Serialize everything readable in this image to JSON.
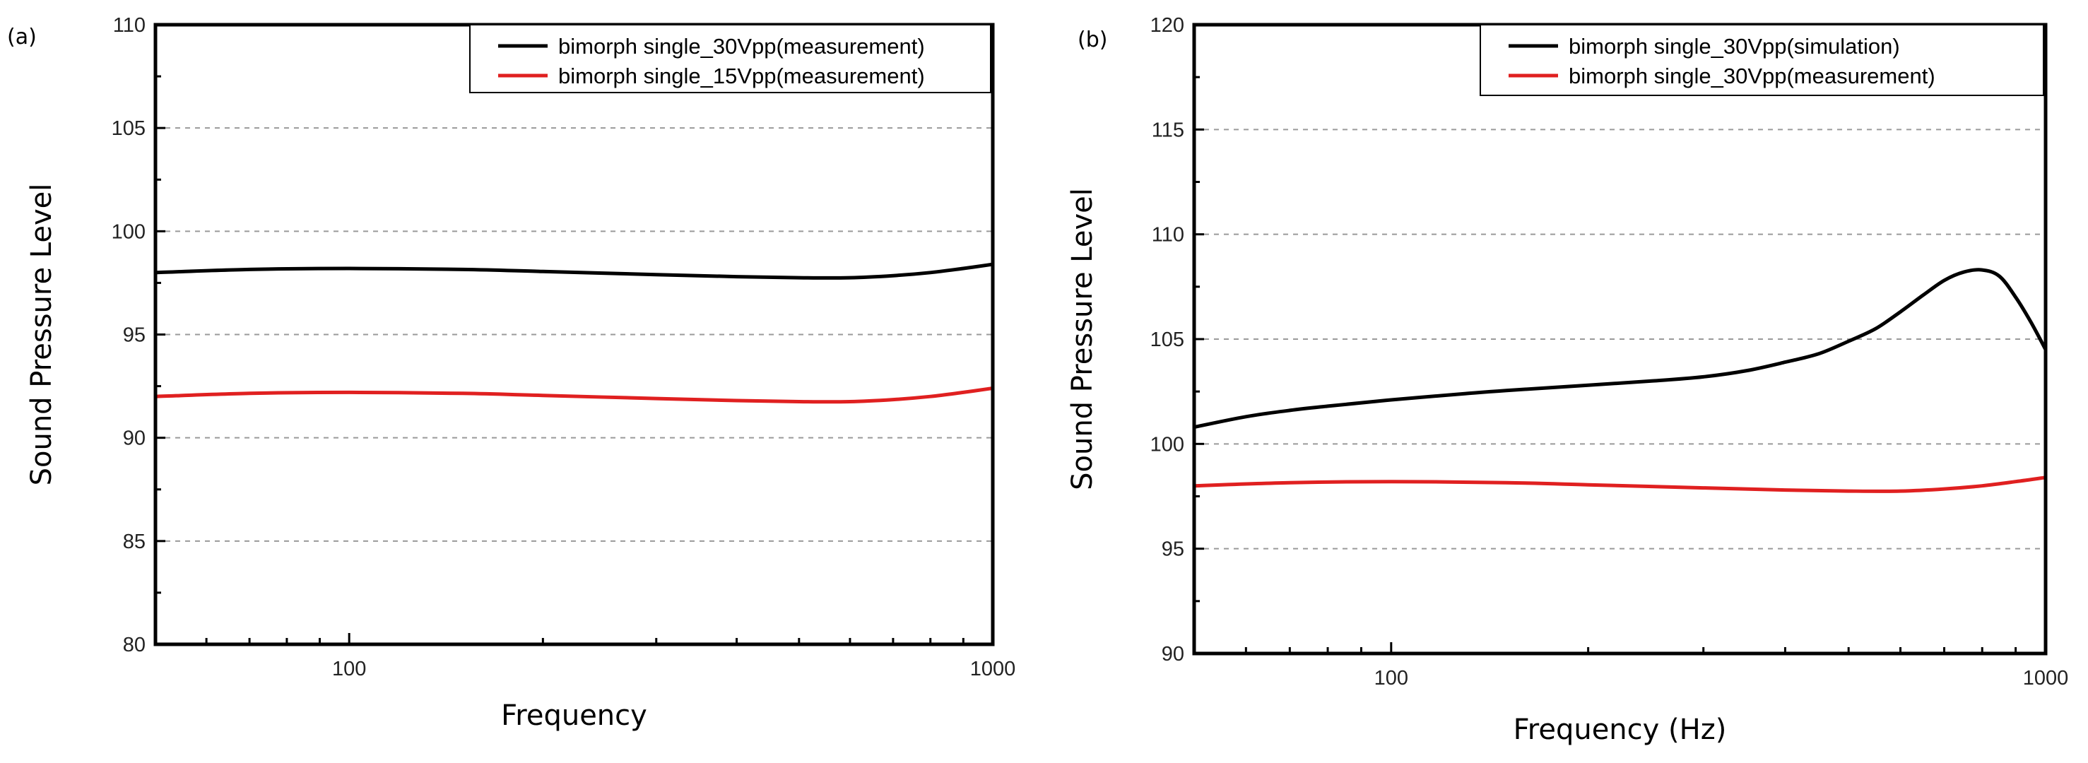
{
  "chart_data": [
    {
      "panel": "(a)",
      "type": "line",
      "xscale": "log",
      "xlim": [
        50,
        1000
      ],
      "ylim": [
        80,
        110
      ],
      "xticks": [
        100,
        1000
      ],
      "xtick_labels": [
        "100",
        "1000"
      ],
      "yticks": [
        80,
        85,
        90,
        95,
        100,
        105,
        110
      ],
      "ytick_labels": [
        "80",
        "85",
        "90",
        "95",
        "100",
        "105",
        "110"
      ],
      "xlabel": "Frequency",
      "ylabel": "Sound Pressure Level",
      "grid": "horizontal dashed",
      "legend_position": "top-right",
      "series": [
        {
          "name": "bimorph single_30Vpp(measurement)",
          "color": "#000000",
          "x": [
            50,
            70,
            100,
            150,
            200,
            300,
            400,
            500,
            600,
            700,
            800,
            900,
            1000
          ],
          "y": [
            98.0,
            98.15,
            98.2,
            98.15,
            98.05,
            97.9,
            97.8,
            97.75,
            97.75,
            97.85,
            98.0,
            98.2,
            98.4
          ]
        },
        {
          "name": "bimorph single_15Vpp(measurement)",
          "color": "#e02020",
          "x": [
            50,
            70,
            100,
            150,
            200,
            300,
            400,
            500,
            600,
            700,
            800,
            900,
            1000
          ],
          "y": [
            92.0,
            92.15,
            92.2,
            92.15,
            92.05,
            91.9,
            91.8,
            91.75,
            91.75,
            91.85,
            92.0,
            92.2,
            92.4
          ]
        }
      ]
    },
    {
      "panel": "(b)",
      "type": "line",
      "xscale": "log",
      "xlim": [
        50,
        1000
      ],
      "ylim": [
        90,
        120
      ],
      "xticks": [
        100,
        1000
      ],
      "xtick_labels": [
        "100",
        "1000"
      ],
      "yticks": [
        90,
        95,
        100,
        105,
        110,
        115,
        120
      ],
      "ytick_labels": [
        "90",
        "95",
        "100",
        "105",
        "110",
        "115",
        "120"
      ],
      "xlabel": "Frequency (Hz)",
      "ylabel": "Sound Pressure Level",
      "grid": "horizontal dashed",
      "legend_position": "top-right",
      "series": [
        {
          "name": "bimorph single_30Vpp(simulation)",
          "color": "#000000",
          "x": [
            50,
            60,
            70,
            80,
            100,
            130,
            150,
            200,
            250,
            300,
            350,
            400,
            450,
            500,
            550,
            600,
            650,
            700,
            750,
            800,
            850,
            900,
            950,
            1000
          ],
          "y": [
            100.8,
            101.3,
            101.6,
            101.8,
            102.1,
            102.4,
            102.55,
            102.8,
            103.0,
            103.2,
            103.5,
            103.9,
            104.3,
            104.9,
            105.5,
            106.3,
            107.1,
            107.8,
            108.2,
            108.3,
            108.0,
            107.0,
            105.8,
            104.5
          ]
        },
        {
          "name": "bimorph single_30Vpp(measurement)",
          "color": "#e02020",
          "x": [
            50,
            70,
            100,
            150,
            200,
            300,
            400,
            500,
            600,
            700,
            800,
            900,
            1000
          ],
          "y": [
            98.0,
            98.15,
            98.2,
            98.15,
            98.05,
            97.9,
            97.8,
            97.75,
            97.75,
            97.85,
            98.0,
            98.2,
            98.4
          ]
        }
      ]
    }
  ]
}
